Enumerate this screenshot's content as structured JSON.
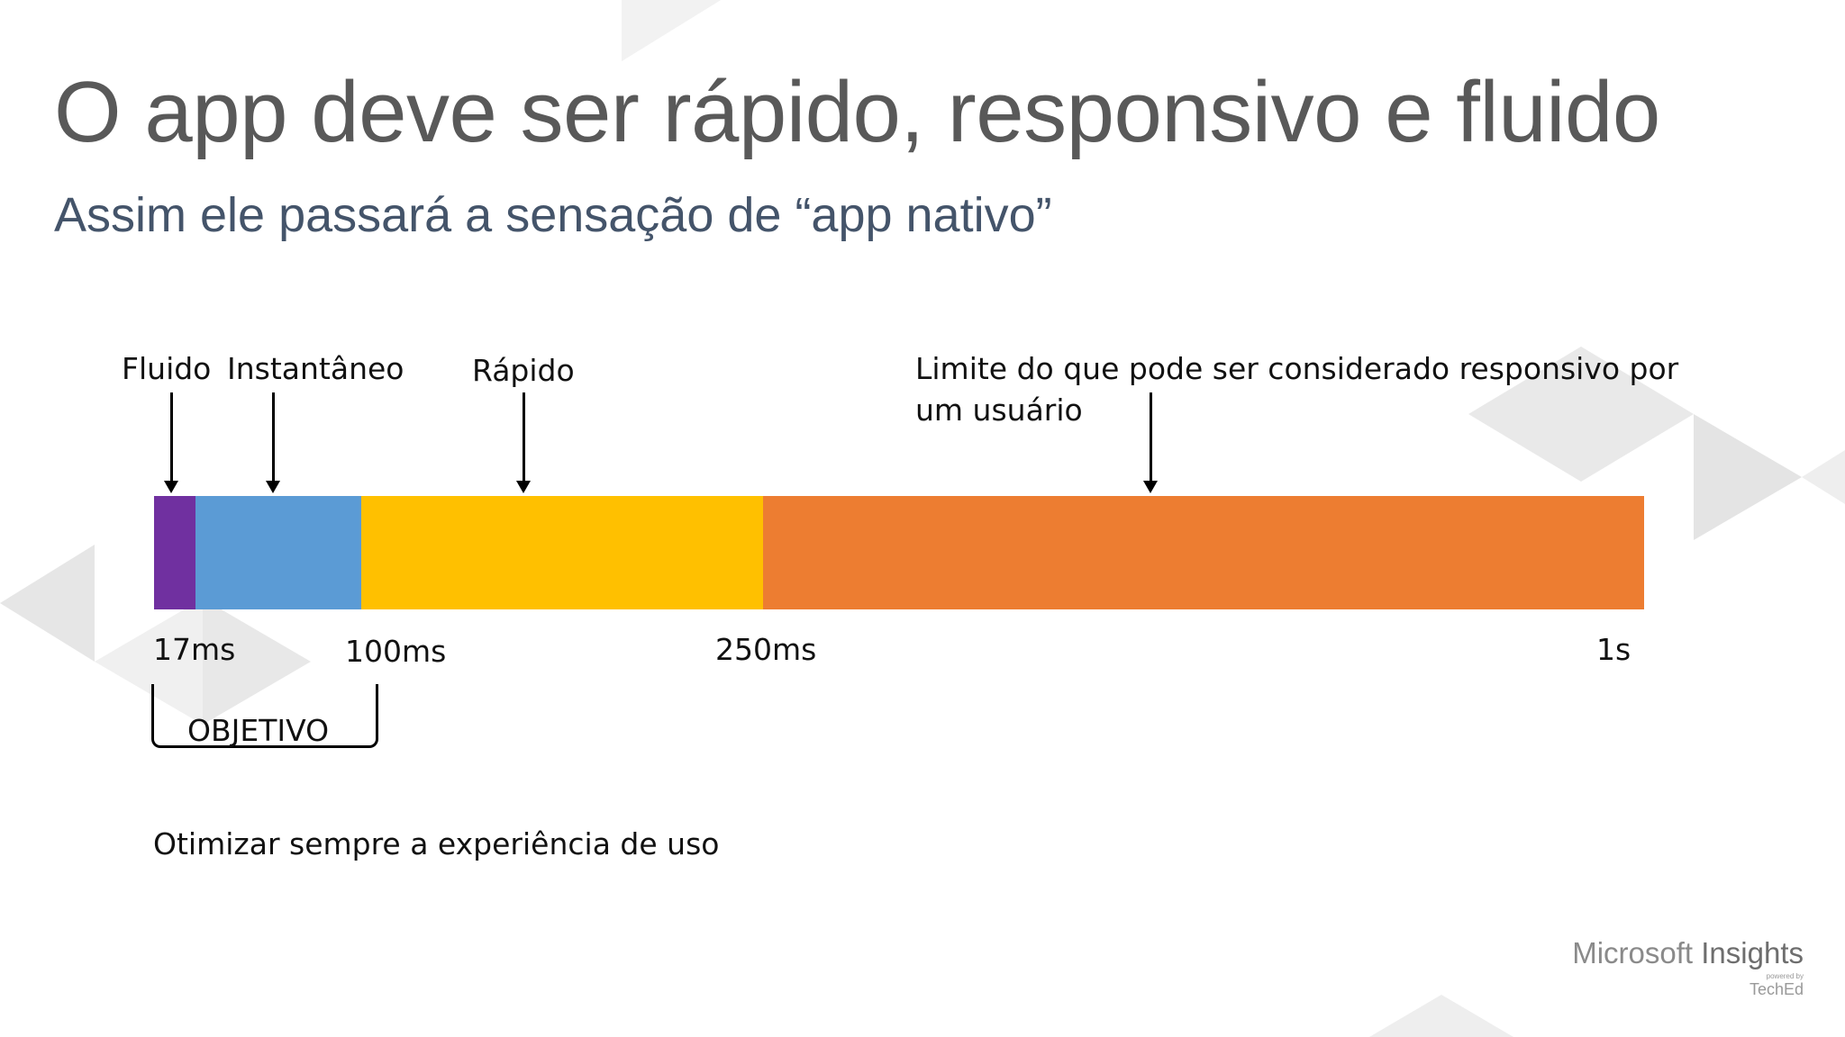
{
  "slide": {
    "title": "O app deve ser rápido, responsivo e fluido",
    "subtitle": "Assim ele passará a sensação de “app nativo”",
    "note": "Otimizar sempre a experiência de uso"
  },
  "timeline": {
    "labels": {
      "fluido": "Fluido",
      "instantaneo": "Instantâneo",
      "rapido": "Rápido",
      "limite_line1": "Limite do que pode ser considerado responsivo por",
      "limite_line2": "um usuário"
    },
    "ticks": {
      "t17": "17ms",
      "t100": "100ms",
      "t250": "250ms",
      "t1s": "1s"
    },
    "segments": [
      {
        "name": "fluido",
        "color": "#7030A0"
      },
      {
        "name": "instantaneo",
        "color": "#5B9BD5"
      },
      {
        "name": "rapido",
        "color": "#FFC000"
      },
      {
        "name": "responsivo",
        "color": "#ED7D31"
      }
    ],
    "goal_label": "OBJETIVO"
  },
  "logo": {
    "microsoft": "Microsoft",
    "insights": "Insights",
    "powered": "powered by",
    "teched": "TechEd"
  }
}
